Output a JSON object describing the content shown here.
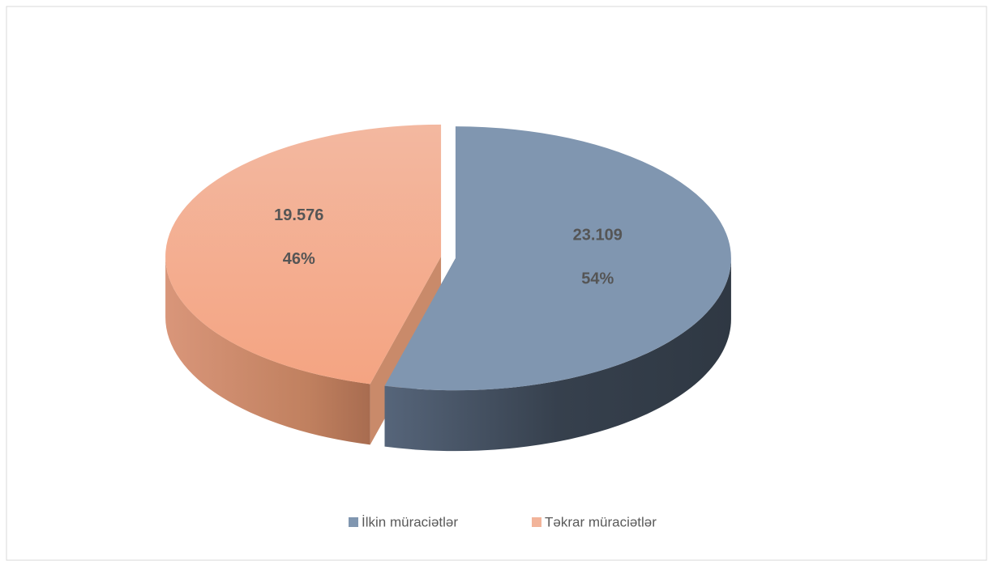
{
  "chart_data": {
    "type": "pie",
    "categories": [
      "İlkin müraciətlər",
      "Təkrar müraciətlər"
    ],
    "values": [
      23109,
      19576
    ],
    "value_labels": [
      "23.109",
      "19.576"
    ],
    "percents": [
      54,
      46
    ],
    "percent_labels": [
      "54%",
      "46%"
    ],
    "colors": [
      "#8096b0",
      "#f2b49a"
    ],
    "side_colors": [
      "#3b4756",
      "#c98a6a"
    ],
    "legend": "bottom"
  }
}
